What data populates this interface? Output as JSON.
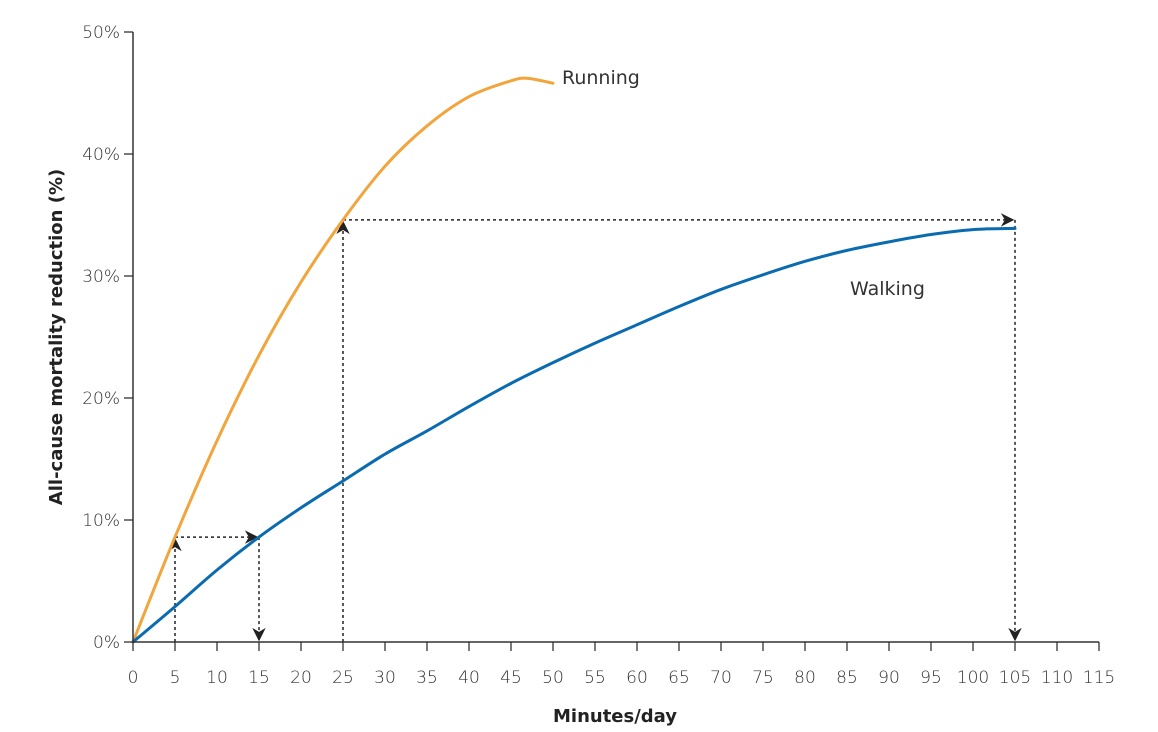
{
  "chart_data": {
    "type": "line",
    "title": "",
    "xlabel": "Minutes/day",
    "ylabel": "All-cause mortality reduction (%)",
    "xlim": [
      0,
      115
    ],
    "ylim": [
      0,
      50
    ],
    "x_ticks": [
      "0",
      "5",
      "10",
      "15",
      "20",
      "25",
      "30",
      "35",
      "40",
      "45",
      "50",
      "55",
      "60",
      "65",
      "70",
      "75",
      "80",
      "85",
      "90",
      "95",
      "100",
      "105",
      "110",
      "115"
    ],
    "y_ticks": [
      "0%",
      "10%",
      "20%",
      "30%",
      "40%",
      "50%"
    ],
    "grid": false,
    "legend": "none (series labeled inline)",
    "series": [
      {
        "name": "Running",
        "color": "#F2A53C",
        "x": [
          0,
          5,
          10,
          15,
          20,
          25,
          30,
          35,
          40,
          45,
          47,
          50
        ],
        "y": [
          0,
          8.6,
          16.5,
          23.5,
          29.5,
          34.6,
          39,
          42.3,
          44.7,
          46,
          46.2,
          45.8
        ]
      },
      {
        "name": "Walking",
        "color": "#0A6BB0",
        "x": [
          0,
          5,
          10,
          15,
          20,
          25,
          30,
          35,
          40,
          45,
          50,
          55,
          60,
          65,
          70,
          75,
          80,
          85,
          90,
          95,
          100,
          105
        ],
        "y": [
          0,
          2.9,
          5.9,
          8.6,
          11,
          13.2,
          15.4,
          17.3,
          19.3,
          21.2,
          22.9,
          24.5,
          26,
          27.5,
          28.9,
          30.1,
          31.2,
          32.1,
          32.8,
          33.4,
          33.8,
          33.9
        ]
      }
    ],
    "annotations": [
      {
        "type": "equivalence-arrows",
        "from_x": 5,
        "to_x": 15,
        "level": 8.6
      },
      {
        "type": "equivalence-arrows",
        "from_x": 25,
        "to_x": 105,
        "level": 34.6
      }
    ]
  }
}
